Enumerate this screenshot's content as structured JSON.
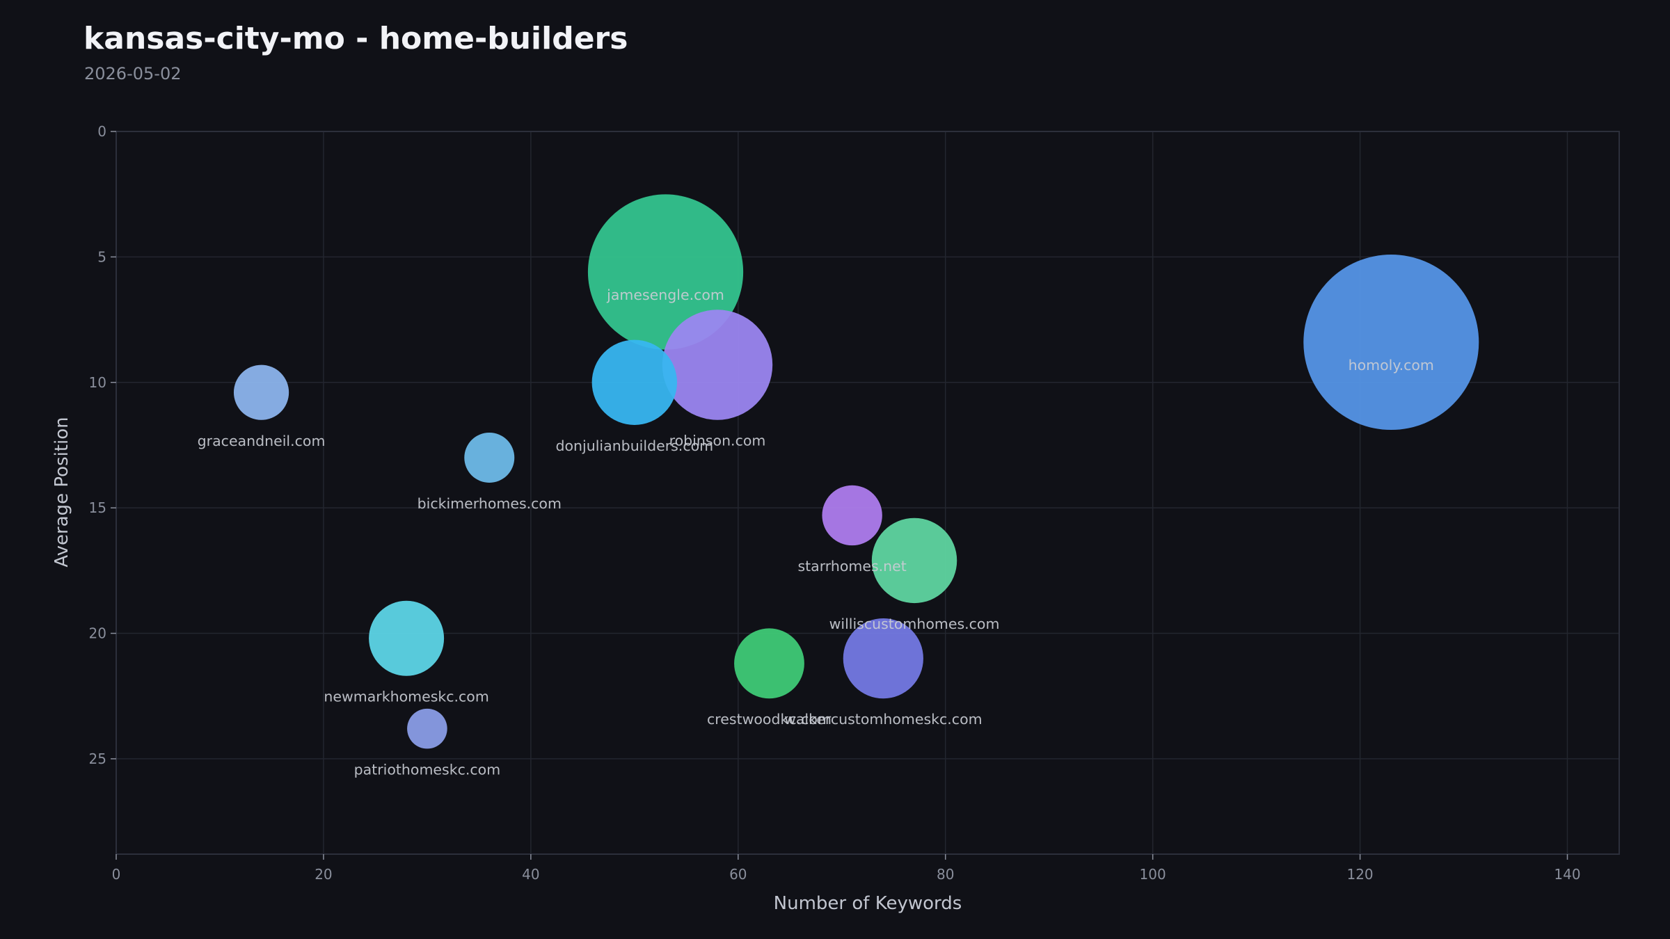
{
  "header": {
    "title": "kansas-city-mo - home-builders",
    "date": "2026-05-02"
  },
  "colors": {
    "background": "#101117",
    "plot_border": "#2c2f3b",
    "grid": "#23262f",
    "tick_text": "#8a8f9c",
    "label_text": "#c9ccd4",
    "axis_label_text": "#c2c6d0"
  },
  "chart_data": {
    "type": "scatter",
    "subtype": "bubble",
    "xlabel": "Number of Keywords",
    "ylabel": "Average Position",
    "xlim": [
      0,
      145
    ],
    "ylim": [
      28.8,
      0
    ],
    "y_inverted": true,
    "xticks": [
      0,
      20,
      40,
      60,
      80,
      100,
      120,
      140
    ],
    "yticks": [
      0,
      5,
      10,
      15,
      20,
      25
    ],
    "grid": true,
    "points": [
      {
        "label": "homoly.com",
        "x": 123,
        "y": 8.4,
        "size": 35,
        "color": "#5595e6"
      },
      {
        "label": "jamesengle.com",
        "x": 53,
        "y": 5.6,
        "size": 31,
        "color": "#34c48e"
      },
      {
        "label": "robinson.com",
        "x": 58,
        "y": 9.3,
        "size": 22,
        "color": "#9b86f0"
      },
      {
        "label": "donjulianbuilders.com",
        "x": 50,
        "y": 10.0,
        "size": 17,
        "color": "#38b6f0"
      },
      {
        "label": "graceandneil.com",
        "x": 14,
        "y": 10.4,
        "size": 11,
        "color": "#8cb4ec"
      },
      {
        "label": "bickimerhomes.com",
        "x": 36,
        "y": 13.0,
        "size": 10,
        "color": "#6ebbe8"
      },
      {
        "label": "starrhomes.net",
        "x": 71,
        "y": 15.3,
        "size": 12,
        "color": "#ae7ced"
      },
      {
        "label": "williscustomhomes.com",
        "x": 77,
        "y": 17.1,
        "size": 17,
        "color": "#5fd5a0"
      },
      {
        "label": "newmarkhomeskc.com",
        "x": 28,
        "y": 20.2,
        "size": 15,
        "color": "#5dd5e6"
      },
      {
        "label": "crestwoodkc.com",
        "x": 63,
        "y": 21.2,
        "size": 14,
        "color": "#3fca76"
      },
      {
        "label": "walkercustomhomeskc.com",
        "x": 74,
        "y": 21.0,
        "size": 16,
        "color": "#7479e3"
      },
      {
        "label": "patriothomeskc.com",
        "x": 30,
        "y": 23.8,
        "size": 8,
        "color": "#8a9de6"
      }
    ]
  }
}
